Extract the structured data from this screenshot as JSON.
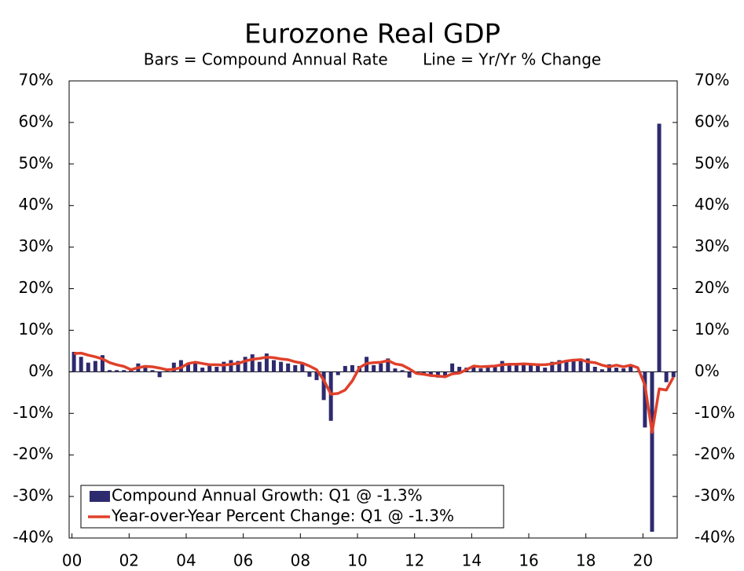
{
  "chart_data": {
    "type": "bar-line",
    "title": "Eurozone Real GDP",
    "subtitle": "Bars = Compound Annual Rate       Line = Yr/Yr % Change",
    "x": [
      2000,
      2000.25,
      2000.5,
      2000.75,
      2001,
      2001.25,
      2001.5,
      2001.75,
      2002,
      2002.25,
      2002.5,
      2002.75,
      2003,
      2003.25,
      2003.5,
      2003.75,
      2004,
      2004.25,
      2004.5,
      2004.75,
      2005,
      2005.25,
      2005.5,
      2005.75,
      2006,
      2006.25,
      2006.5,
      2006.75,
      2007,
      2007.25,
      2007.5,
      2007.75,
      2008,
      2008.25,
      2008.5,
      2008.75,
      2009,
      2009.25,
      2009.5,
      2009.75,
      2010,
      2010.25,
      2010.5,
      2010.75,
      2011,
      2011.25,
      2011.5,
      2011.75,
      2012,
      2012.25,
      2012.5,
      2012.75,
      2013,
      2013.25,
      2013.5,
      2013.75,
      2014,
      2014.25,
      2014.5,
      2014.75,
      2015,
      2015.25,
      2015.5,
      2015.75,
      2016,
      2016.25,
      2016.5,
      2016.75,
      2017,
      2017.25,
      2017.5,
      2017.75,
      2018,
      2018.25,
      2018.5,
      2018.75,
      2019,
      2019.25,
      2019.5,
      2019.75,
      2020,
      2020.25,
      2020.5,
      2020.75,
      2021
    ],
    "series": [
      {
        "name": "Compound Annual Growth: Q1 @ -1.3%",
        "kind": "bar",
        "color": "#2e2a6e",
        "values": [
          4.8,
          3.6,
          2.2,
          2.6,
          4.0,
          0.4,
          0.4,
          0.4,
          0.8,
          2.0,
          1.6,
          0.4,
          -1.3,
          0.2,
          2.2,
          2.8,
          1.8,
          2.4,
          1.0,
          1.6,
          1.2,
          2.4,
          2.8,
          2.6,
          3.6,
          4.2,
          2.4,
          4.4,
          2.8,
          2.4,
          2.0,
          1.6,
          2.0,
          -1.2,
          -2.0,
          -6.8,
          -11.8,
          -0.8,
          1.4,
          1.6,
          1.4,
          3.6,
          1.6,
          2.0,
          3.2,
          0.8,
          0.4,
          -1.4,
          -0.4,
          -0.8,
          -0.6,
          -1.4,
          -1.2,
          2.0,
          1.2,
          1.0,
          1.2,
          0.8,
          1.4,
          1.6,
          2.6,
          1.6,
          1.6,
          1.8,
          2.0,
          1.4,
          1.0,
          2.4,
          2.8,
          2.6,
          2.8,
          3.2,
          3.2,
          1.2,
          0.6,
          1.8,
          1.0,
          0.8,
          1.4,
          0.2,
          -13.4,
          -38.5,
          59.7,
          -2.5,
          -1.3
        ]
      },
      {
        "name": "Year-over-Year Percent Change: Q1 @ -1.3%",
        "kind": "line",
        "color": "#e0402a",
        "values": [
          4.4,
          4.5,
          4.0,
          3.6,
          3.1,
          2.2,
          1.7,
          1.3,
          0.5,
          1.0,
          1.3,
          1.2,
          0.9,
          0.5,
          0.6,
          1.0,
          2.0,
          2.3,
          2.0,
          1.7,
          1.7,
          1.6,
          1.8,
          2.0,
          2.6,
          3.0,
          3.2,
          3.5,
          3.4,
          3.1,
          2.9,
          2.4,
          2.1,
          1.4,
          0.5,
          -2.0,
          -5.4,
          -5.2,
          -4.4,
          -2.2,
          1.0,
          2.0,
          2.2,
          2.3,
          2.7,
          1.9,
          1.6,
          0.7,
          -0.4,
          -0.6,
          -0.9,
          -1.0,
          -1.2,
          -0.5,
          -0.3,
          0.5,
          1.4,
          1.2,
          1.3,
          1.4,
          1.7,
          1.8,
          1.8,
          1.9,
          1.8,
          1.7,
          1.7,
          1.9,
          2.2,
          2.6,
          2.8,
          2.9,
          2.4,
          2.2,
          1.6,
          1.2,
          1.6,
          1.2,
          1.6,
          1.0,
          -3.2,
          -14.6,
          -4.1,
          -4.4,
          -1.3
        ]
      }
    ],
    "xlim": [
      1999.9,
      2021.2
    ],
    "xticks": [
      {
        "value": 2000,
        "label": "00"
      },
      {
        "value": 2002,
        "label": "02"
      },
      {
        "value": 2004,
        "label": "04"
      },
      {
        "value": 2006,
        "label": "06"
      },
      {
        "value": 2008,
        "label": "08"
      },
      {
        "value": 2010,
        "label": "10"
      },
      {
        "value": 2012,
        "label": "12"
      },
      {
        "value": 2014,
        "label": "14"
      },
      {
        "value": 2016,
        "label": "16"
      },
      {
        "value": 2018,
        "label": "18"
      },
      {
        "value": 2020,
        "label": "20"
      }
    ],
    "ylim": [
      -40,
      70
    ],
    "yticks": [
      {
        "value": -40,
        "label": "-40%"
      },
      {
        "value": -30,
        "label": "-30%"
      },
      {
        "value": -20,
        "label": "-20%"
      },
      {
        "value": -10,
        "label": "-10%"
      },
      {
        "value": 0,
        "label": "0%"
      },
      {
        "value": 10,
        "label": "10%"
      },
      {
        "value": 20,
        "label": "20%"
      },
      {
        "value": 30,
        "label": "30%"
      },
      {
        "value": 40,
        "label": "40%"
      },
      {
        "value": 50,
        "label": "50%"
      },
      {
        "value": 60,
        "label": "60%"
      },
      {
        "value": 70,
        "label": "70%"
      }
    ],
    "y2lim": [
      -40,
      70
    ],
    "y2ticks": [
      {
        "value": -40,
        "label": "-40%"
      },
      {
        "value": -30,
        "label": "-30%"
      },
      {
        "value": -20,
        "label": "-20%"
      },
      {
        "value": -10,
        "label": "-10%"
      },
      {
        "value": 0,
        "label": "0%"
      },
      {
        "value": 10,
        "label": "10%"
      },
      {
        "value": 20,
        "label": "20%"
      },
      {
        "value": 30,
        "label": "30%"
      },
      {
        "value": 40,
        "label": "40%"
      },
      {
        "value": 50,
        "label": "50%"
      },
      {
        "value": 60,
        "label": "60%"
      },
      {
        "value": 70,
        "label": "70%"
      }
    ],
    "legend": "bottom-left"
  }
}
